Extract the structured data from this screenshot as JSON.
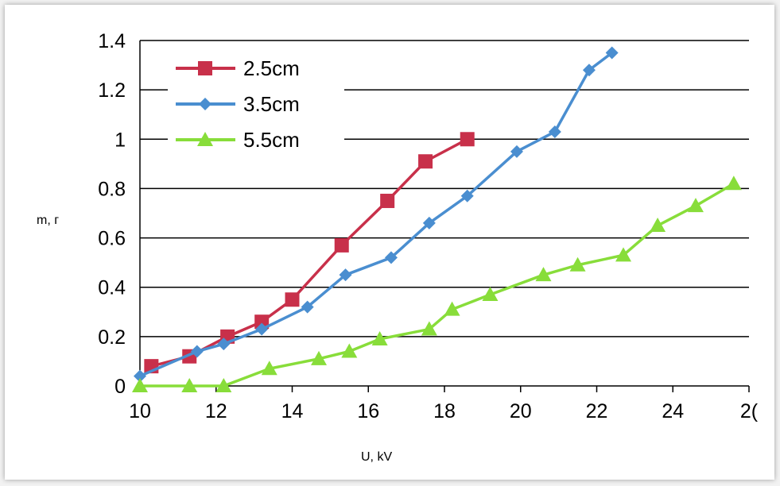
{
  "chart_data": {
    "type": "line",
    "title": "",
    "xlabel": "U, kV",
    "ylabel": "m, г",
    "xlim": [
      10,
      26
    ],
    "ylim": [
      0,
      1.4
    ],
    "x_ticks": [
      "10",
      "12",
      "14",
      "16",
      "18",
      "20",
      "22",
      "24",
      "2("
    ],
    "y_ticks": [
      "0",
      "0.2",
      "0.4",
      "0.6",
      "0.8",
      "1",
      "1.2",
      "1.4"
    ],
    "grid": "horizontal",
    "legend_position": "top-left",
    "series": [
      {
        "name": "2.5cm",
        "color": "#c8304a",
        "marker": "square",
        "x": [
          10.3,
          11.3,
          12.3,
          13.2,
          14.0,
          15.3,
          16.5,
          17.5,
          18.6
        ],
        "y": [
          0.08,
          0.12,
          0.2,
          0.26,
          0.35,
          0.57,
          0.75,
          0.91,
          1.0
        ]
      },
      {
        "name": "3.5cm",
        "color": "#4a8ed0",
        "marker": "diamond",
        "x": [
          10.0,
          11.5,
          12.2,
          13.2,
          14.4,
          15.4,
          16.6,
          17.6,
          18.6,
          19.9,
          20.9,
          21.8,
          22.4
        ],
        "y": [
          0.04,
          0.14,
          0.17,
          0.23,
          0.32,
          0.45,
          0.52,
          0.66,
          0.77,
          0.95,
          1.03,
          1.28,
          1.35
        ]
      },
      {
        "name": "5.5cm",
        "color": "#88dd3a",
        "marker": "triangle",
        "x": [
          10.0,
          11.3,
          12.2,
          13.4,
          14.7,
          15.5,
          16.3,
          17.6,
          18.2,
          19.2,
          20.6,
          21.5,
          22.7,
          23.6,
          24.6,
          25.6
        ],
        "y": [
          0.0,
          0.0,
          0.0,
          0.07,
          0.11,
          0.14,
          0.19,
          0.23,
          0.31,
          0.37,
          0.45,
          0.49,
          0.53,
          0.65,
          0.73,
          0.82
        ]
      }
    ]
  }
}
